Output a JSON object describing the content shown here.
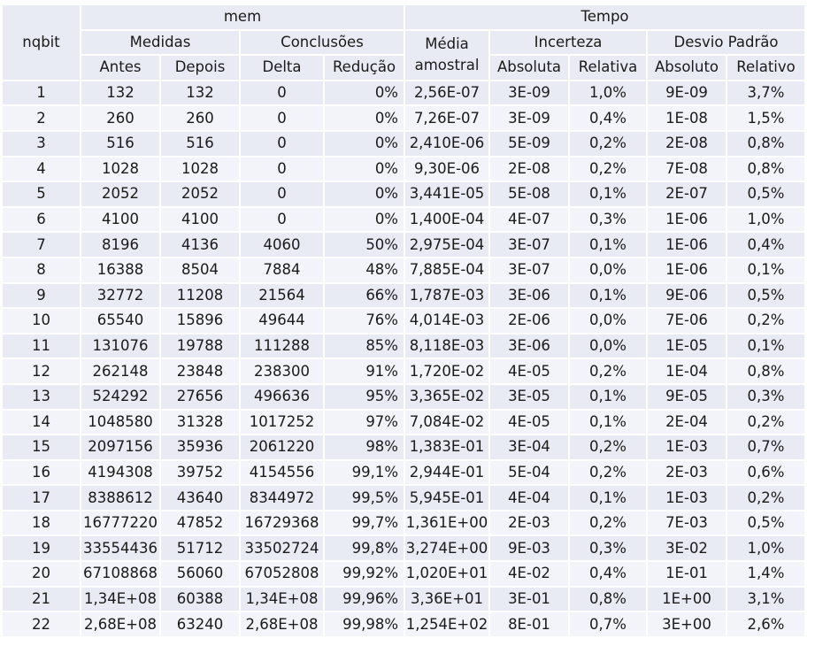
{
  "header": {
    "nqbit": "nqbit",
    "mem": "mem",
    "tempo": "Tempo",
    "medidas": "Medidas",
    "conclusoes": "Conclusões",
    "media_line1": "Média",
    "media_line2": "amostral",
    "incerteza": "Incerteza",
    "desvio": "Desvio Padrão",
    "antes": "Antes",
    "depois": "Depois",
    "delta": "Delta",
    "reducao": "Redução",
    "absoluta": "Absoluta",
    "relativa": "Relativa",
    "absoluto": "Absoluto",
    "relativo": "Relativo"
  },
  "rows": [
    {
      "n": "1",
      "antes": "132",
      "depois": "132",
      "delta": "0",
      "reducao": "0%",
      "media": "2,56E-07",
      "inc_abs": "3E-09",
      "inc_rel": "1,0%",
      "dp_abs": "9E-09",
      "dp_rel": "3,7%"
    },
    {
      "n": "2",
      "antes": "260",
      "depois": "260",
      "delta": "0",
      "reducao": "0%",
      "media": "7,26E-07",
      "inc_abs": "3E-09",
      "inc_rel": "0,4%",
      "dp_abs": "1E-08",
      "dp_rel": "1,5%"
    },
    {
      "n": "3",
      "antes": "516",
      "depois": "516",
      "delta": "0",
      "reducao": "0%",
      "media": "2,410E-06",
      "inc_abs": "5E-09",
      "inc_rel": "0,2%",
      "dp_abs": "2E-08",
      "dp_rel": "0,8%"
    },
    {
      "n": "4",
      "antes": "1028",
      "depois": "1028",
      "delta": "0",
      "reducao": "0%",
      "media": "9,30E-06",
      "inc_abs": "2E-08",
      "inc_rel": "0,2%",
      "dp_abs": "7E-08",
      "dp_rel": "0,8%"
    },
    {
      "n": "5",
      "antes": "2052",
      "depois": "2052",
      "delta": "0",
      "reducao": "0%",
      "media": "3,441E-05",
      "inc_abs": "5E-08",
      "inc_rel": "0,1%",
      "dp_abs": "2E-07",
      "dp_rel": "0,5%"
    },
    {
      "n": "6",
      "antes": "4100",
      "depois": "4100",
      "delta": "0",
      "reducao": "0%",
      "media": "1,400E-04",
      "inc_abs": "4E-07",
      "inc_rel": "0,3%",
      "dp_abs": "1E-06",
      "dp_rel": "1,0%"
    },
    {
      "n": "7",
      "antes": "8196",
      "depois": "4136",
      "delta": "4060",
      "reducao": "50%",
      "media": "2,975E-04",
      "inc_abs": "3E-07",
      "inc_rel": "0,1%",
      "dp_abs": "1E-06",
      "dp_rel": "0,4%"
    },
    {
      "n": "8",
      "antes": "16388",
      "depois": "8504",
      "delta": "7884",
      "reducao": "48%",
      "media": "7,885E-04",
      "inc_abs": "3E-07",
      "inc_rel": "0,0%",
      "dp_abs": "1E-06",
      "dp_rel": "0,1%"
    },
    {
      "n": "9",
      "antes": "32772",
      "depois": "11208",
      "delta": "21564",
      "reducao": "66%",
      "media": "1,787E-03",
      "inc_abs": "3E-06",
      "inc_rel": "0,1%",
      "dp_abs": "9E-06",
      "dp_rel": "0,5%"
    },
    {
      "n": "10",
      "antes": "65540",
      "depois": "15896",
      "delta": "49644",
      "reducao": "76%",
      "media": "4,014E-03",
      "inc_abs": "2E-06",
      "inc_rel": "0,0%",
      "dp_abs": "7E-06",
      "dp_rel": "0,2%"
    },
    {
      "n": "11",
      "antes": "131076",
      "depois": "19788",
      "delta": "111288",
      "reducao": "85%",
      "media": "8,118E-03",
      "inc_abs": "3E-06",
      "inc_rel": "0,0%",
      "dp_abs": "1E-05",
      "dp_rel": "0,1%"
    },
    {
      "n": "12",
      "antes": "262148",
      "depois": "23848",
      "delta": "238300",
      "reducao": "91%",
      "media": "1,720E-02",
      "inc_abs": "4E-05",
      "inc_rel": "0,2%",
      "dp_abs": "1E-04",
      "dp_rel": "0,8%"
    },
    {
      "n": "13",
      "antes": "524292",
      "depois": "27656",
      "delta": "496636",
      "reducao": "95%",
      "media": "3,365E-02",
      "inc_abs": "3E-05",
      "inc_rel": "0,1%",
      "dp_abs": "9E-05",
      "dp_rel": "0,3%"
    },
    {
      "n": "14",
      "antes": "1048580",
      "depois": "31328",
      "delta": "1017252",
      "reducao": "97%",
      "media": "7,084E-02",
      "inc_abs": "4E-05",
      "inc_rel": "0,1%",
      "dp_abs": "2E-04",
      "dp_rel": "0,2%"
    },
    {
      "n": "15",
      "antes": "2097156",
      "depois": "35936",
      "delta": "2061220",
      "reducao": "98%",
      "media": "1,383E-01",
      "inc_abs": "3E-04",
      "inc_rel": "0,2%",
      "dp_abs": "1E-03",
      "dp_rel": "0,7%"
    },
    {
      "n": "16",
      "antes": "4194308",
      "depois": "39752",
      "delta": "4154556",
      "reducao": "99,1%",
      "media": "2,944E-01",
      "inc_abs": "5E-04",
      "inc_rel": "0,2%",
      "dp_abs": "2E-03",
      "dp_rel": "0,6%"
    },
    {
      "n": "17",
      "antes": "8388612",
      "depois": "43640",
      "delta": "8344972",
      "reducao": "99,5%",
      "media": "5,945E-01",
      "inc_abs": "4E-04",
      "inc_rel": "0,1%",
      "dp_abs": "1E-03",
      "dp_rel": "0,2%"
    },
    {
      "n": "18",
      "antes": "16777220",
      "depois": "47852",
      "delta": "16729368",
      "reducao": "99,7%",
      "media": "1,361E+00",
      "inc_abs": "2E-03",
      "inc_rel": "0,2%",
      "dp_abs": "7E-03",
      "dp_rel": "0,5%"
    },
    {
      "n": "19",
      "antes": "33554436",
      "depois": "51712",
      "delta": "33502724",
      "reducao": "99,8%",
      "media": "3,274E+00",
      "inc_abs": "9E-03",
      "inc_rel": "0,3%",
      "dp_abs": "3E-02",
      "dp_rel": "1,0%"
    },
    {
      "n": "20",
      "antes": "67108868",
      "depois": "56060",
      "delta": "67052808",
      "reducao": "99,92%",
      "media": "1,020E+01",
      "inc_abs": "4E-02",
      "inc_rel": "0,4%",
      "dp_abs": "1E-01",
      "dp_rel": "1,4%"
    },
    {
      "n": "21",
      "antes": "1,34E+08",
      "depois": "60388",
      "delta": "1,34E+08",
      "reducao": "99,96%",
      "media": "3,36E+01",
      "inc_abs": "3E-01",
      "inc_rel": "0,8%",
      "dp_abs": "1E+00",
      "dp_rel": "3,1%"
    },
    {
      "n": "22",
      "antes": "2,68E+08",
      "depois": "63240",
      "delta": "2,68E+08",
      "reducao": "99,98%",
      "media": "1,254E+02",
      "inc_abs": "8E-01",
      "inc_rel": "0,7%",
      "dp_abs": "3E+00",
      "dp_rel": "2,6%"
    }
  ]
}
